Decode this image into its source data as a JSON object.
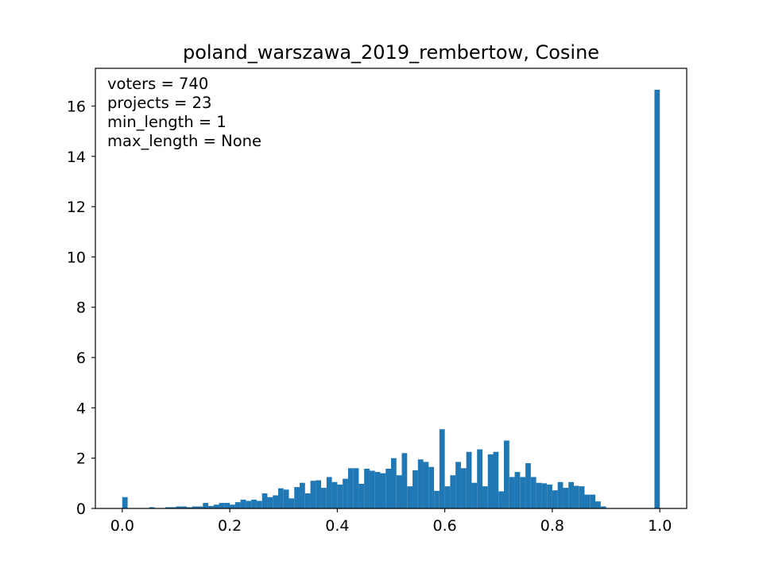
{
  "chart_data": {
    "type": "bar",
    "title": "poland_warszawa_2019_rembertow, Cosine",
    "xlabel": "",
    "ylabel": "",
    "xlim": [
      -0.05,
      1.05
    ],
    "ylim": [
      0,
      17.5
    ],
    "x_ticks": [
      "0.0",
      "0.2",
      "0.4",
      "0.6",
      "0.8",
      "1.0"
    ],
    "y_ticks": [
      "0",
      "2",
      "4",
      "6",
      "8",
      "10",
      "12",
      "14",
      "16"
    ],
    "annotations": [
      "voters = 740",
      "projects = 23",
      "min_length = 1",
      "max_length = None"
    ],
    "bar_color": "#1f77b4",
    "bin_width": 0.01,
    "bins_left": [
      0.0,
      0.01,
      0.02,
      0.03,
      0.04,
      0.05,
      0.06,
      0.07,
      0.08,
      0.09,
      0.1,
      0.11,
      0.12,
      0.13,
      0.14,
      0.15,
      0.16,
      0.17,
      0.18,
      0.19,
      0.2,
      0.21,
      0.22,
      0.23,
      0.24,
      0.25,
      0.26,
      0.27,
      0.28,
      0.29,
      0.3,
      0.31,
      0.32,
      0.33,
      0.34,
      0.35,
      0.36,
      0.37,
      0.38,
      0.39,
      0.4,
      0.41,
      0.42,
      0.43,
      0.44,
      0.45,
      0.46,
      0.47,
      0.48,
      0.49,
      0.5,
      0.51,
      0.52,
      0.53,
      0.54,
      0.55,
      0.56,
      0.57,
      0.58,
      0.59,
      0.6,
      0.61,
      0.62,
      0.63,
      0.64,
      0.65,
      0.66,
      0.67,
      0.68,
      0.69,
      0.7,
      0.71,
      0.72,
      0.73,
      0.74,
      0.75,
      0.76,
      0.77,
      0.78,
      0.79,
      0.8,
      0.81,
      0.82,
      0.83,
      0.84,
      0.85,
      0.86,
      0.87,
      0.88,
      0.89,
      0.9,
      0.91,
      0.92,
      0.93,
      0.94,
      0.95,
      0.96,
      0.97,
      0.98,
      0.99
    ],
    "values": [
      0.45,
      0.0,
      0.0,
      0.0,
      0.0,
      0.05,
      0.0,
      0.0,
      0.05,
      0.05,
      0.08,
      0.08,
      0.05,
      0.08,
      0.08,
      0.22,
      0.1,
      0.15,
      0.22,
      0.22,
      0.15,
      0.25,
      0.35,
      0.3,
      0.35,
      0.3,
      0.6,
      0.45,
      0.52,
      0.8,
      0.75,
      0.4,
      0.85,
      1.02,
      0.6,
      1.1,
      1.12,
      0.82,
      1.25,
      1.05,
      0.95,
      1.18,
      1.6,
      1.6,
      0.98,
      1.58,
      1.5,
      1.45,
      1.4,
      1.58,
      2.0,
      1.32,
      2.2,
      0.88,
      1.52,
      1.95,
      1.85,
      1.65,
      0.7,
      3.15,
      0.88,
      1.32,
      1.85,
      1.6,
      2.25,
      1.02,
      2.35,
      0.88,
      2.15,
      2.25,
      0.68,
      2.7,
      1.25,
      1.45,
      1.25,
      1.8,
      1.25,
      1.02,
      1.0,
      0.95,
      0.72,
      1.05,
      0.82,
      1.05,
      0.9,
      0.88,
      0.55,
      0.55,
      0.28,
      0.08,
      0.0,
      0.0,
      0.0,
      0.0,
      0.0,
      0.0,
      0.0,
      0.0,
      0.0,
      16.65
    ]
  }
}
